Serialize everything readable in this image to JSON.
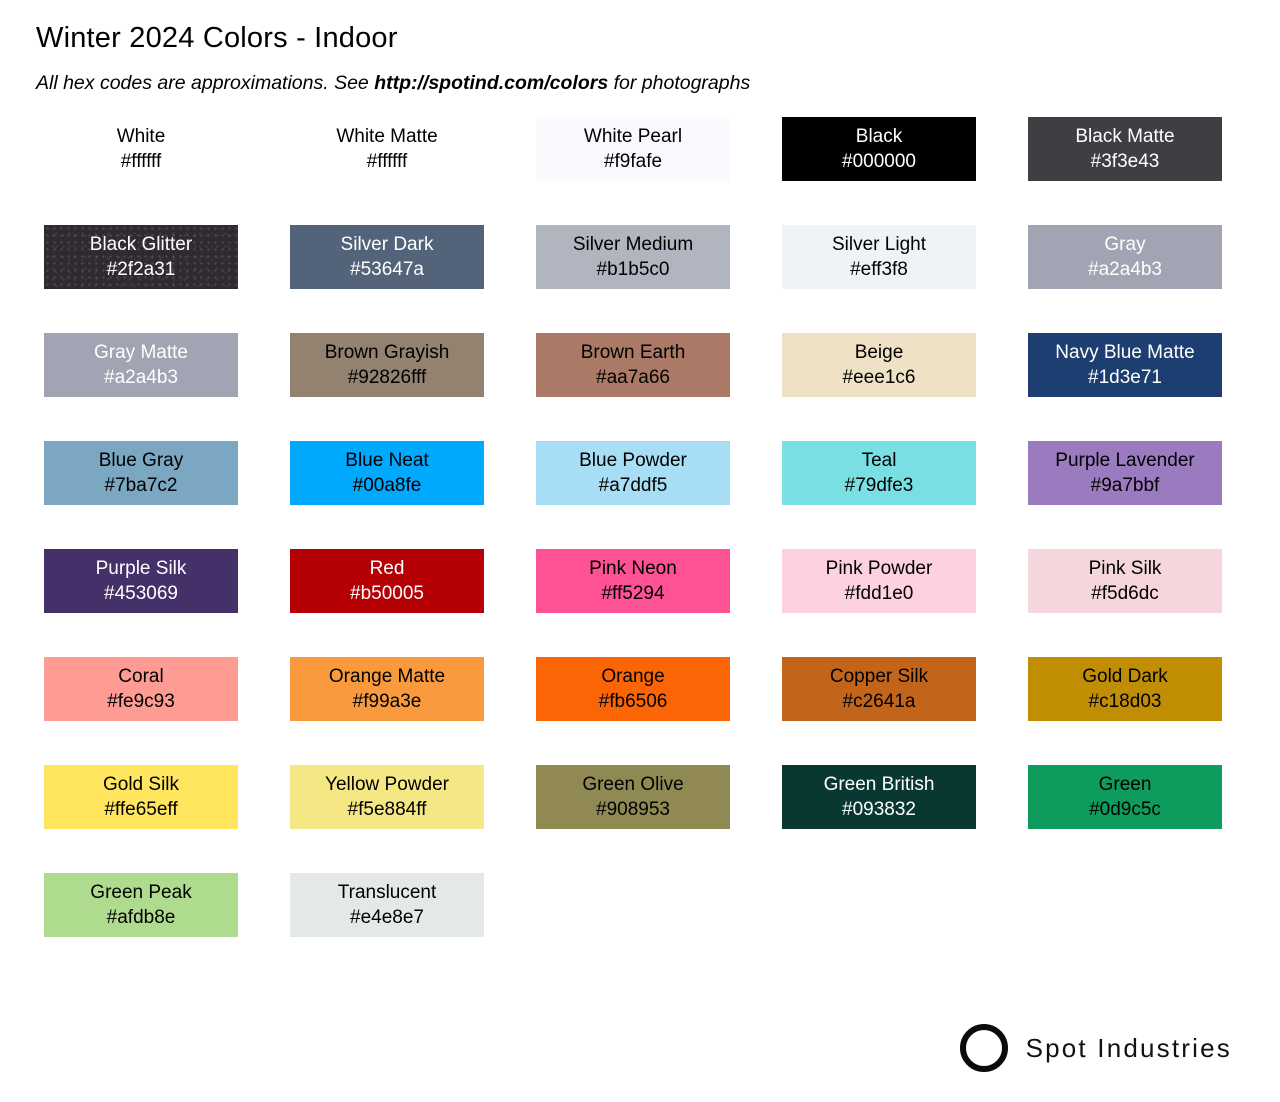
{
  "header": {
    "title": "Winter 2024 Colors - Indoor",
    "subtitle_prefix": "All hex codes are approximations. See ",
    "subtitle_link": "http://spotind.com/colors",
    "subtitle_suffix": " for photographs"
  },
  "palette": {
    "columns": 5,
    "swatches": [
      {
        "name": "White",
        "hex": "#ffffff",
        "fill": "#ffffff",
        "text_color": "#000000"
      },
      {
        "name": "White Matte",
        "hex": "#ffffff",
        "fill": "#ffffff",
        "text_color": "#000000"
      },
      {
        "name": "White Pearl",
        "hex": "#f9fafe",
        "fill": "#f9fafe",
        "text_color": "#000000"
      },
      {
        "name": "Black",
        "hex": "#000000",
        "fill": "#000000",
        "text_color": "#ffffff"
      },
      {
        "name": "Black Matte",
        "hex": "#3f3e43",
        "fill": "#3f3e43",
        "text_color": "#ffffff"
      },
      {
        "name": "Black Glitter",
        "hex": "#2f2a31",
        "fill": "#2f2a31",
        "text_color": "#ffffff",
        "texture": "glitter"
      },
      {
        "name": "Silver Dark",
        "hex": "#53647a",
        "fill": "#53647a",
        "text_color": "#ffffff"
      },
      {
        "name": "Silver Medium",
        "hex": "#b1b5c0",
        "fill": "#b1b5c0",
        "text_color": "#000000"
      },
      {
        "name": "Silver Light",
        "hex": "#eff3f8",
        "fill": "#eff3f8",
        "text_color": "#000000"
      },
      {
        "name": "Gray",
        "hex": "#a2a4b3",
        "fill": "#a2a4b3",
        "text_color": "#ffffff"
      },
      {
        "name": "Gray Matte",
        "hex": "#a2a4b3",
        "fill": "#a2a4b3",
        "text_color": "#ffffff"
      },
      {
        "name": "Brown Grayish",
        "hex": "#92826fff",
        "fill": "#92826f",
        "text_color": "#000000"
      },
      {
        "name": "Brown Earth",
        "hex": "#aa7a66",
        "fill": "#aa7a66",
        "text_color": "#000000"
      },
      {
        "name": "Beige",
        "hex": "#eee1c6",
        "fill": "#eee1c6",
        "text_color": "#000000"
      },
      {
        "name": "Navy Blue Matte",
        "hex": "#1d3e71",
        "fill": "#1d3e71",
        "text_color": "#ffffff"
      },
      {
        "name": "Blue Gray",
        "hex": "#7ba7c2",
        "fill": "#7ba7c2",
        "text_color": "#000000"
      },
      {
        "name": "Blue Neat",
        "hex": "#00a8fe",
        "fill": "#00a8fe",
        "text_color": "#000000"
      },
      {
        "name": "Blue Powder",
        "hex": "#a7ddf5",
        "fill": "#a7ddf5",
        "text_color": "#000000"
      },
      {
        "name": "Teal",
        "hex": "#79dfe3",
        "fill": "#79dfe3",
        "text_color": "#000000"
      },
      {
        "name": "Purple Lavender",
        "hex": "#9a7bbf",
        "fill": "#9a7bbf",
        "text_color": "#000000"
      },
      {
        "name": "Purple Silk",
        "hex": "#453069",
        "fill": "#453069",
        "text_color": "#ffffff"
      },
      {
        "name": "Red",
        "hex": "#b50005",
        "fill": "#b50005",
        "text_color": "#ffffff"
      },
      {
        "name": "Pink Neon",
        "hex": "#ff5294",
        "fill": "#ff5294",
        "text_color": "#000000"
      },
      {
        "name": "Pink Powder",
        "hex": "#fdd1e0",
        "fill": "#fdd1e0",
        "text_color": "#000000"
      },
      {
        "name": "Pink Silk",
        "hex": "#f5d6dc",
        "fill": "#f5d6dc",
        "text_color": "#000000"
      },
      {
        "name": "Coral",
        "hex": "#fe9c93",
        "fill": "#fe9c93",
        "text_color": "#000000"
      },
      {
        "name": "Orange Matte",
        "hex": "#f99a3e",
        "fill": "#f99a3e",
        "text_color": "#000000"
      },
      {
        "name": "Orange",
        "hex": "#fb6506",
        "fill": "#fb6506",
        "text_color": "#000000"
      },
      {
        "name": "Copper Silk",
        "hex": "#c2641a",
        "fill": "#c2641a",
        "text_color": "#000000"
      },
      {
        "name": "Gold Dark",
        "hex": "#c18d03",
        "fill": "#c18d03",
        "text_color": "#000000"
      },
      {
        "name": "Gold Silk",
        "hex": "#ffe65eff",
        "fill": "#ffe65e",
        "text_color": "#000000"
      },
      {
        "name": "Yellow Powder",
        "hex": "#f5e884ff",
        "fill": "#f5e884",
        "text_color": "#000000"
      },
      {
        "name": "Green Olive",
        "hex": "#908953",
        "fill": "#908953",
        "text_color": "#000000"
      },
      {
        "name": "Green British",
        "hex": "#093832",
        "fill": "#093832",
        "text_color": "#ffffff"
      },
      {
        "name": "Green",
        "hex": "#0d9c5c",
        "fill": "#0d9c5c",
        "text_color": "#000000"
      },
      {
        "name": "Green Peak",
        "hex": "#afdb8e",
        "fill": "#afdb8e",
        "text_color": "#000000"
      },
      {
        "name": "Translucent",
        "hex": "#e4e8e7",
        "fill": "#e4e8e7",
        "text_color": "#000000"
      }
    ]
  },
  "footer": {
    "brand": "Spot Industries",
    "logo_icon": "circle-ring-icon"
  }
}
